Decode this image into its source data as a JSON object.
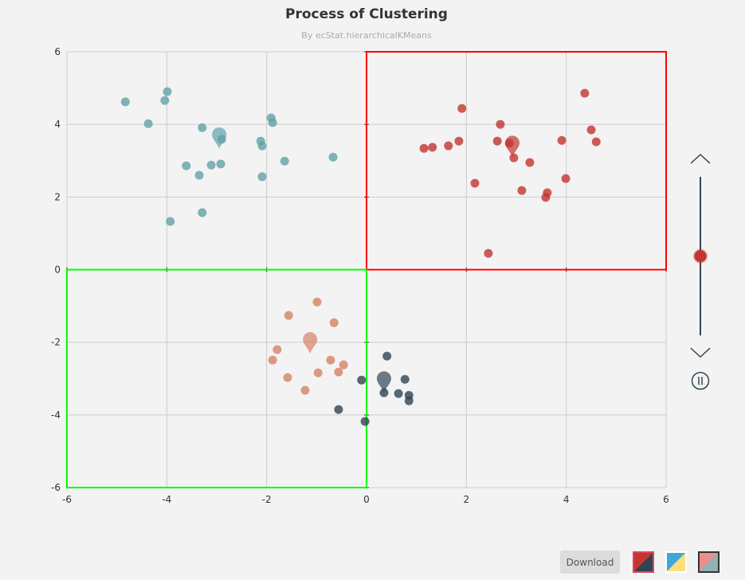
{
  "chart_data": {
    "type": "scatter",
    "title": "Process of Clustering",
    "subtitle": "By ecStat.hierarchicalKMeans",
    "xlim": [
      -6,
      6
    ],
    "ylim": [
      -6,
      6
    ],
    "xticks": [
      -6,
      -4,
      -2,
      0,
      2,
      4,
      6
    ],
    "yticks": [
      -6,
      -4,
      -2,
      0,
      2,
      4,
      6
    ],
    "grid": true,
    "series": [
      {
        "color": "#61a0a8",
        "centroid": [
          -2.95,
          3.7
        ],
        "points": [
          [
            -4.83,
            4.62
          ],
          [
            -3.99,
            4.9
          ],
          [
            -4.04,
            4.66
          ],
          [
            -4.37,
            4.02
          ],
          [
            -3.29,
            3.91
          ],
          [
            -2.9,
            3.59
          ],
          [
            -3.61,
            2.86
          ],
          [
            -3.35,
            2.6
          ],
          [
            -3.11,
            2.88
          ],
          [
            -2.92,
            2.91
          ],
          [
            -2.12,
            3.54
          ],
          [
            -1.91,
            4.18
          ],
          [
            -1.88,
            4.05
          ],
          [
            -2.09,
            3.41
          ],
          [
            -1.64,
            2.99
          ],
          [
            -0.67,
            3.1
          ],
          [
            -2.09,
            2.56
          ],
          [
            -3.93,
            1.33
          ],
          [
            -3.29,
            1.57
          ]
        ]
      },
      {
        "color": "#c23531",
        "centroid": [
          2.92,
          3.47
        ],
        "points": [
          [
            1.91,
            4.44
          ],
          [
            2.68,
            4.0
          ],
          [
            1.15,
            3.34
          ],
          [
            1.32,
            3.37
          ],
          [
            1.64,
            3.41
          ],
          [
            1.85,
            3.54
          ],
          [
            2.62,
            3.54
          ],
          [
            2.86,
            3.48
          ],
          [
            2.95,
            3.08
          ],
          [
            3.27,
            2.95
          ],
          [
            2.17,
            2.38
          ],
          [
            3.11,
            2.18
          ],
          [
            3.62,
            2.12
          ],
          [
            3.59,
            1.99
          ],
          [
            3.99,
            2.51
          ],
          [
            3.91,
            3.56
          ],
          [
            4.37,
            4.86
          ],
          [
            4.5,
            3.85
          ],
          [
            4.6,
            3.52
          ],
          [
            2.44,
            0.45
          ]
        ]
      },
      {
        "color": "#d48265",
        "centroid": [
          -1.13,
          -1.94
        ],
        "points": [
          [
            -0.99,
            -0.89
          ],
          [
            -1.56,
            -1.26
          ],
          [
            -0.65,
            -1.46
          ],
          [
            -1.79,
            -2.2
          ],
          [
            -1.88,
            -2.49
          ],
          [
            -0.72,
            -2.49
          ],
          [
            -0.46,
            -2.62
          ],
          [
            -0.56,
            -2.82
          ],
          [
            -0.97,
            -2.84
          ],
          [
            -1.58,
            -2.97
          ],
          [
            -1.23,
            -3.32
          ]
        ]
      },
      {
        "color": "#2f4554",
        "centroid": [
          0.35,
          -3.02
        ],
        "points": [
          [
            0.41,
            -2.38
          ],
          [
            -0.1,
            -3.04
          ],
          [
            0.77,
            -3.02
          ],
          [
            0.35,
            -3.39
          ],
          [
            0.64,
            -3.41
          ],
          [
            0.85,
            -3.46
          ],
          [
            0.85,
            -3.61
          ],
          [
            -0.56,
            -3.85
          ],
          [
            -0.03,
            -4.18
          ]
        ]
      }
    ],
    "regions": [
      {
        "x": [
          0,
          6
        ],
        "y": [
          0,
          6
        ],
        "color": "#ff0000"
      },
      {
        "x": [
          -6,
          0
        ],
        "y": [
          -6,
          0
        ],
        "color": "#00ff00"
      }
    ]
  },
  "timeline": {
    "progress": 0.5,
    "handle_color": "#c23531",
    "line_color": "#304654"
  },
  "toolbar": {
    "download_label": "Download"
  },
  "themes": [
    {
      "name": "theme-red-dark",
      "c1": "#c23531",
      "c2": "#2f4554",
      "selected": true
    },
    {
      "name": "theme-blue-yellow",
      "c1": "#3fa7dc",
      "c2": "#fedd7a",
      "selected": false
    },
    {
      "name": "theme-pink-teal",
      "c1": "#e98f8f",
      "c2": "#8fb3b3",
      "selected": false
    }
  ]
}
